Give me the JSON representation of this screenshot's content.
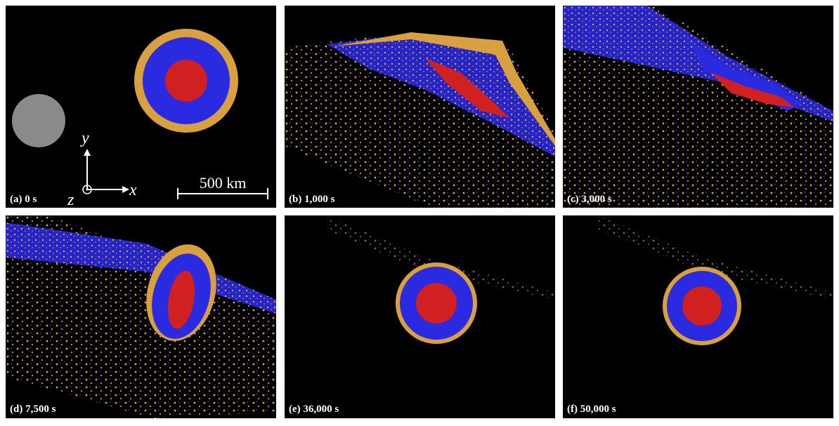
{
  "panels": [
    {
      "label": "(a) 0 s"
    },
    {
      "label": "(b) 1,000 s"
    },
    {
      "label": "(c) 3,000 s"
    },
    {
      "label": "(d) 7,500 s"
    },
    {
      "label": "(e) 36,000 s"
    },
    {
      "label": "(f) 50,000 s"
    }
  ],
  "axes": {
    "y": "y",
    "x": "x",
    "z": "z"
  },
  "scale_bar": "500 km"
}
